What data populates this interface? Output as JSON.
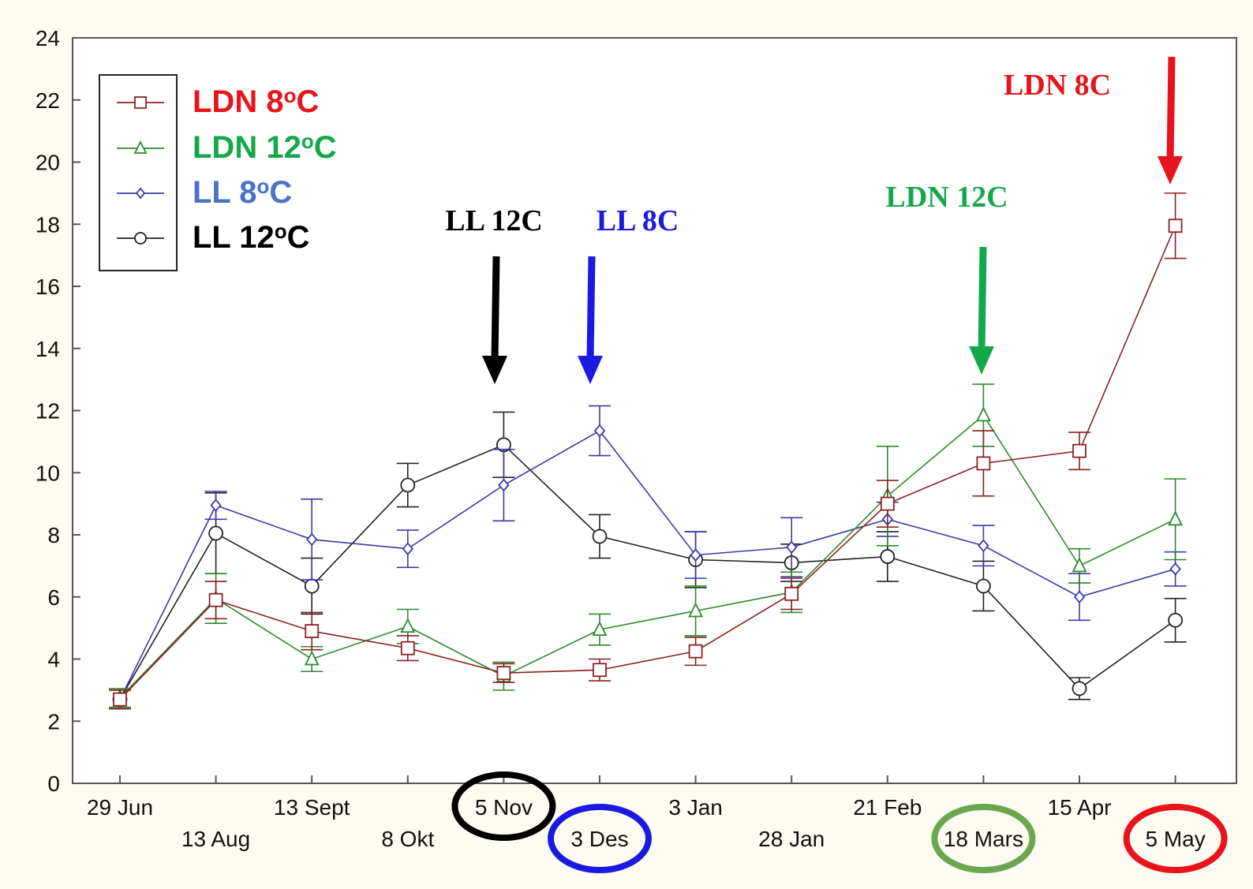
{
  "chart_data": {
    "type": "line",
    "title": "",
    "xlabel": "",
    "ylabel": "",
    "ylim": [
      0,
      24
    ],
    "yticks": [
      0,
      2,
      4,
      6,
      8,
      10,
      12,
      14,
      16,
      18,
      20,
      22,
      24
    ],
    "categories": [
      "29 Jun",
      "13 Aug",
      "13 Sept",
      "8 Okt",
      "5 Nov",
      "3 Des",
      "3 Jan",
      "28 Jan",
      "21 Feb",
      "18 Mars",
      "15 Apr",
      "5 May"
    ],
    "grid": false,
    "legend_position": "top-left",
    "series": [
      {
        "name": "LDN 8oC",
        "label_main": "LDN 8",
        "label_sup": "o",
        "label_end": "C",
        "label_color": "#e8141c",
        "line_color": "#8b2020",
        "marker": "square",
        "values": [
          2.7,
          5.9,
          4.9,
          4.35,
          3.55,
          3.65,
          4.25,
          6.1,
          9.0,
          10.3,
          10.7,
          17.95
        ],
        "errors": [
          0.3,
          0.6,
          0.6,
          0.4,
          0.3,
          0.35,
          0.45,
          0.5,
          0.75,
          1.05,
          0.6,
          1.05
        ]
      },
      {
        "name": "LDN 12oC",
        "label_main": "LDN 12",
        "label_sup": "o",
        "label_end": "C",
        "label_color": "#13a84a",
        "line_color": "#2b8a2b",
        "marker": "triangle",
        "values": [
          2.75,
          5.95,
          4.0,
          5.05,
          3.45,
          4.95,
          5.55,
          6.15,
          9.25,
          11.85,
          7.0,
          8.5
        ],
        "errors": [
          0.3,
          0.8,
          0.4,
          0.55,
          0.45,
          0.5,
          0.8,
          0.65,
          1.6,
          1.0,
          0.55,
          1.3
        ]
      },
      {
        "name": "LL 8oC",
        "label_main": "LL 8",
        "label_sup": "o",
        "label_end": "C",
        "label_color": "#4a72c8",
        "line_color": "#3a3aa8",
        "marker": "diamond",
        "values": [
          2.7,
          8.95,
          7.85,
          7.55,
          9.6,
          11.35,
          7.35,
          7.6,
          8.5,
          7.65,
          6.0,
          6.9
        ],
        "errors": [
          0.3,
          0.45,
          1.3,
          0.6,
          1.15,
          0.8,
          0.75,
          0.95,
          0.55,
          0.65,
          0.75,
          0.55
        ]
      },
      {
        "name": "LL 12oC",
        "label_main": "LL 12",
        "label_sup": "o",
        "label_end": "C",
        "label_color": "#000000",
        "line_color": "#222222",
        "marker": "circle",
        "values": [
          2.7,
          8.05,
          6.35,
          9.6,
          10.9,
          7.95,
          7.2,
          7.1,
          7.3,
          6.35,
          3.05,
          5.25
        ],
        "errors": [
          0.3,
          1.3,
          0.9,
          0.7,
          1.05,
          0.7,
          0.9,
          0.6,
          0.8,
          0.8,
          0.35,
          0.7
        ]
      }
    ],
    "annotations": [
      {
        "text": "LL 12C",
        "color": "#000000",
        "category": "5 Nov"
      },
      {
        "text": "LL 8C",
        "color": "#1a1ae0",
        "category": "3 Des"
      },
      {
        "text": "LDN 12C",
        "color": "#13a84a",
        "category": "18 Mars"
      },
      {
        "text": "LDN 8C",
        "color": "#e8141c",
        "category": "5 May"
      }
    ],
    "circled_categories": [
      {
        "category": "5 Nov",
        "color": "#000000"
      },
      {
        "category": "3 Des",
        "color": "#1a1ae0"
      },
      {
        "category": "18 Mars",
        "color": "#6aa84f"
      },
      {
        "category": "5 May",
        "color": "#e8141c"
      }
    ]
  }
}
